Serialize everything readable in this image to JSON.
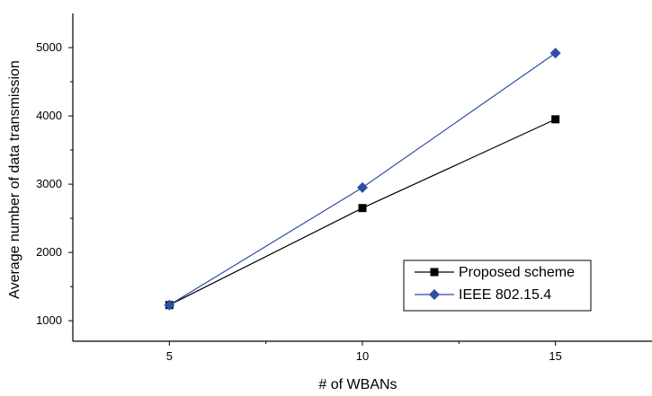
{
  "chart_data": {
    "type": "line",
    "x": [
      5,
      10,
      15
    ],
    "xticks": [
      5,
      10,
      15
    ],
    "yticks": [
      1000,
      2000,
      3000,
      4000,
      5000
    ],
    "xlim": [
      2.5,
      17.5
    ],
    "ylim": [
      700,
      5500
    ],
    "xlabel": "# of WBANs",
    "ylabel": "Average number of data transmission",
    "grid": false,
    "legend_position": "bottom-right",
    "series": [
      {
        "name": "Proposed scheme",
        "values": [
          1230,
          2650,
          3950
        ],
        "color": "#000000",
        "marker": "square"
      },
      {
        "name": "IEEE 802.15.4",
        "values": [
          1230,
          2950,
          4920
        ],
        "color": "#2f4fa0",
        "marker": "diamond"
      }
    ]
  }
}
